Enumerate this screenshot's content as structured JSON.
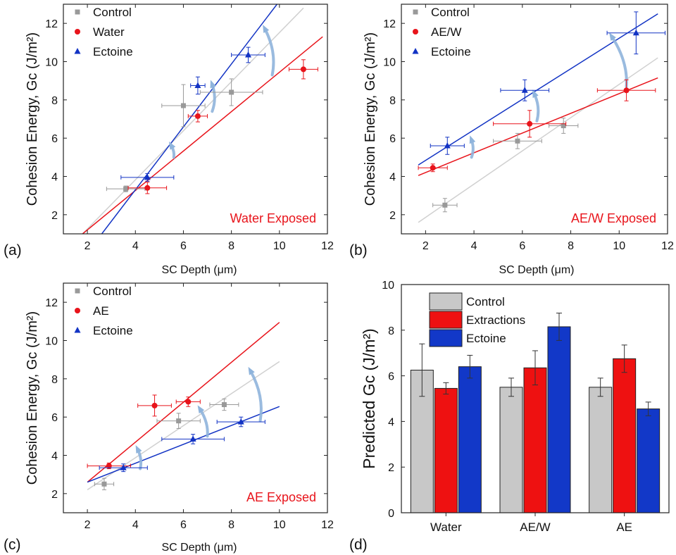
{
  "colors": {
    "control": "#999999",
    "treatment": "#e8141b",
    "ectoine": "#1233c4",
    "bar_control": "#c8c8c8",
    "bar_treatment": "#ee1111",
    "bar_ectoine": "#1238c8",
    "arrow": "#8fb4dc",
    "fit_control": "#d0d0d0"
  },
  "chart_data": [
    {
      "type": "scatter",
      "panel_label": "(a)",
      "xlabel": "SC Depth (μm)",
      "ylabel": "Cohesion Energy, Gc (J/m²)",
      "xlim": [
        1,
        12
      ],
      "ylim": [
        1,
        13
      ],
      "xticks": [
        "2",
        "4",
        "6",
        "8",
        "10",
        "12"
      ],
      "yticks": [
        "2",
        "4",
        "6",
        "8",
        "10",
        "12"
      ],
      "annotation": "Water Exposed",
      "legend_position": "top-left",
      "series": [
        {
          "name": "Control",
          "marker": "square",
          "color": "#999999",
          "points": [
            [
              3.6,
              3.35,
              0.8,
              0.15
            ],
            [
              6.0,
              7.7,
              0.9,
              1.1
            ],
            [
              8.0,
              8.4,
              1.3,
              0.7
            ]
          ],
          "fit": [
            [
              1.8,
              1.0
            ],
            [
              11.0,
              12.8
            ]
          ]
        },
        {
          "name": "Water",
          "marker": "circle",
          "color": "#e8141b",
          "points": [
            [
              4.5,
              3.4,
              0.8,
              0.3
            ],
            [
              6.6,
              7.15,
              0.4,
              0.3
            ],
            [
              11.0,
              9.6,
              0.6,
              0.5
            ]
          ],
          "fit": [
            [
              1.8,
              1.0
            ],
            [
              11.8,
              11.3
            ]
          ]
        },
        {
          "name": "Ectoine",
          "marker": "triangle",
          "color": "#1233c4",
          "points": [
            [
              4.5,
              3.95,
              1.1,
              0.2
            ],
            [
              6.6,
              8.75,
              0.3,
              0.45
            ],
            [
              8.7,
              10.35,
              0.7,
              0.4
            ]
          ],
          "fit": [
            [
              2.6,
              1.0
            ],
            [
              9.9,
              13.0
            ]
          ]
        }
      ],
      "arrows": [
        [
          5.6,
          5.0,
          5.5,
          5.6
        ],
        [
          7.2,
          7.4,
          7.2,
          8.8
        ],
        [
          9.7,
          9.3,
          9.4,
          11.7
        ]
      ]
    },
    {
      "type": "scatter",
      "panel_label": "(b)",
      "xlabel": "SC Depth (μm)",
      "ylabel": "Cohesion Energy, Gc (J/m²)",
      "xlim": [
        1,
        12
      ],
      "ylim": [
        1,
        13
      ],
      "xticks": [
        "2",
        "4",
        "6",
        "8",
        "10",
        "12"
      ],
      "yticks": [
        "2",
        "4",
        "6",
        "8",
        "10",
        "12"
      ],
      "annotation": "AE/W Exposed",
      "legend_position": "top-left",
      "series": [
        {
          "name": "Control",
          "marker": "square",
          "color": "#999999",
          "points": [
            [
              2.8,
              2.5,
              0.5,
              0.35
            ],
            [
              5.8,
              5.85,
              1.0,
              0.4
            ],
            [
              7.7,
              6.65,
              0.6,
              0.4
            ]
          ],
          "fit": [
            [
              1.7,
              1.6
            ],
            [
              11.6,
              10.2
            ]
          ]
        },
        {
          "name": "AE/W",
          "marker": "circle",
          "color": "#e8141b",
          "points": [
            [
              2.3,
              4.45,
              0.6,
              0.2
            ],
            [
              6.3,
              6.75,
              1.5,
              0.7
            ],
            [
              10.3,
              8.5,
              1.2,
              0.55
            ]
          ],
          "fit": [
            [
              1.7,
              4.05
            ],
            [
              11.6,
              9.15
            ]
          ]
        },
        {
          "name": "Ectoine",
          "marker": "triangle",
          "color": "#1233c4",
          "points": [
            [
              2.9,
              5.6,
              0.7,
              0.45
            ],
            [
              6.1,
              8.5,
              1.0,
              0.55
            ],
            [
              10.7,
              11.5,
              1.2,
              1.1
            ]
          ],
          "fit": [
            [
              1.7,
              4.6
            ],
            [
              11.6,
              12.5
            ]
          ]
        }
      ],
      "arrows": [
        [
          3.9,
          5.0,
          3.9,
          5.9
        ],
        [
          6.6,
          6.9,
          6.5,
          8.3
        ],
        [
          10.3,
          8.7,
          9.7,
          11.3
        ]
      ]
    },
    {
      "type": "scatter",
      "panel_label": "(c)",
      "xlabel": "SC Depth (μm)",
      "ylabel": "Cohesion Energy, Gc (J/m²)",
      "xlim": [
        1,
        12
      ],
      "ylim": [
        1,
        13
      ],
      "xticks": [
        "2",
        "4",
        "6",
        "8",
        "10",
        "12"
      ],
      "yticks": [
        "2",
        "4",
        "6",
        "8",
        "10",
        "12"
      ],
      "annotation": "AE Exposed",
      "legend_position": "top-left",
      "series": [
        {
          "name": "Control",
          "marker": "square",
          "color": "#999999",
          "points": [
            [
              2.7,
              2.5,
              0.4,
              0.3
            ],
            [
              5.8,
              5.8,
              0.9,
              0.4
            ],
            [
              7.7,
              6.65,
              0.6,
              0.3
            ]
          ],
          "fit": [
            [
              2.0,
              2.2
            ],
            [
              10.0,
              8.9
            ]
          ]
        },
        {
          "name": "AE",
          "marker": "circle",
          "color": "#e8141b",
          "points": [
            [
              2.9,
              3.45,
              0.9,
              0.15
            ],
            [
              4.8,
              6.6,
              0.7,
              0.55
            ],
            [
              6.2,
              6.8,
              0.5,
              0.25
            ]
          ],
          "fit": [
            [
              2.0,
              2.6
            ],
            [
              10.0,
              10.95
            ]
          ]
        },
        {
          "name": "Ectoine",
          "marker": "triangle",
          "color": "#1233c4",
          "points": [
            [
              3.5,
              3.35,
              1.0,
              0.2
            ],
            [
              6.4,
              4.85,
              1.3,
              0.25
            ],
            [
              8.4,
              5.75,
              1.0,
              0.25
            ]
          ],
          "fit": [
            [
              2.0,
              2.6
            ],
            [
              10.0,
              6.55
            ]
          ]
        }
      ],
      "arrows": [
        [
          4.2,
          3.3,
          4.1,
          4.3
        ],
        [
          7.0,
          5.0,
          6.7,
          6.4
        ],
        [
          9.2,
          5.8,
          8.8,
          8.4
        ]
      ]
    },
    {
      "type": "bar",
      "panel_label": "(d)",
      "ylabel": "Predicted Gc (J/m²)",
      "ylim": [
        0,
        10
      ],
      "yticks": [
        "0",
        "2",
        "4",
        "6",
        "8",
        "10"
      ],
      "categories": [
        "Water",
        "AE/W",
        "AE"
      ],
      "legend_position": "top-left",
      "series": [
        {
          "name": "Control",
          "color": "#c8c8c8",
          "values": [
            6.25,
            5.5,
            5.5
          ],
          "errors": [
            1.15,
            0.4,
            0.4
          ]
        },
        {
          "name": "Extractions",
          "color": "#ee1111",
          "values": [
            5.45,
            6.35,
            6.75
          ],
          "errors": [
            0.25,
            0.75,
            0.6
          ]
        },
        {
          "name": "Ectoine",
          "color": "#1238c8",
          "values": [
            6.4,
            8.15,
            4.55
          ],
          "errors": [
            0.5,
            0.6,
            0.3
          ]
        }
      ]
    }
  ]
}
